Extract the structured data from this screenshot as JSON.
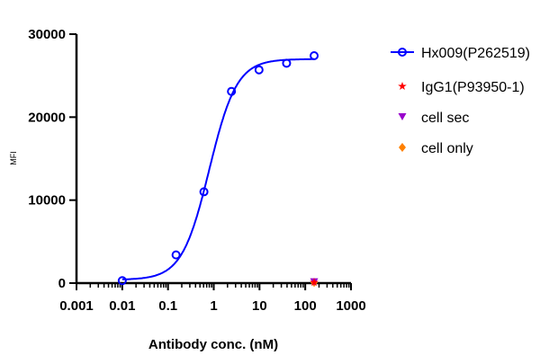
{
  "chart_data": {
    "type": "scatter",
    "xlabel": "Antibody conc. (nM)",
    "ylabel": "MFI",
    "xscale": "log",
    "xlim": [
      0.001,
      1000
    ],
    "ylim": [
      0,
      30000
    ],
    "xticks": [
      "0.001",
      "0.01",
      "0.1",
      "1",
      "10",
      "100",
      "1000"
    ],
    "yticks": [
      "0",
      "10000",
      "20000",
      "30000"
    ],
    "grid": false,
    "legend_position": "right",
    "series": [
      {
        "name": "Hx009(P262519)",
        "color": "#0000ff",
        "marker": "open-circle",
        "fit_curve": true,
        "x": [
          0.01,
          0.15,
          0.61,
          2.44,
          9.77,
          39.1,
          156.3
        ],
        "y": [
          300,
          3400,
          11000,
          23100,
          25700,
          26500,
          27400
        ]
      },
      {
        "name": "IgG1(P93950-1)",
        "color": "#ff0000",
        "marker": "star",
        "x": [
          156.3
        ],
        "y": [
          100
        ]
      },
      {
        "name": "cell sec",
        "color": "#9900cc",
        "marker": "triangle-down",
        "x": [
          156.3
        ],
        "y": [
          150
        ]
      },
      {
        "name": "cell only",
        "color": "#ff8000",
        "marker": "diamond",
        "x": [
          156.3
        ],
        "y": [
          80
        ]
      }
    ]
  }
}
